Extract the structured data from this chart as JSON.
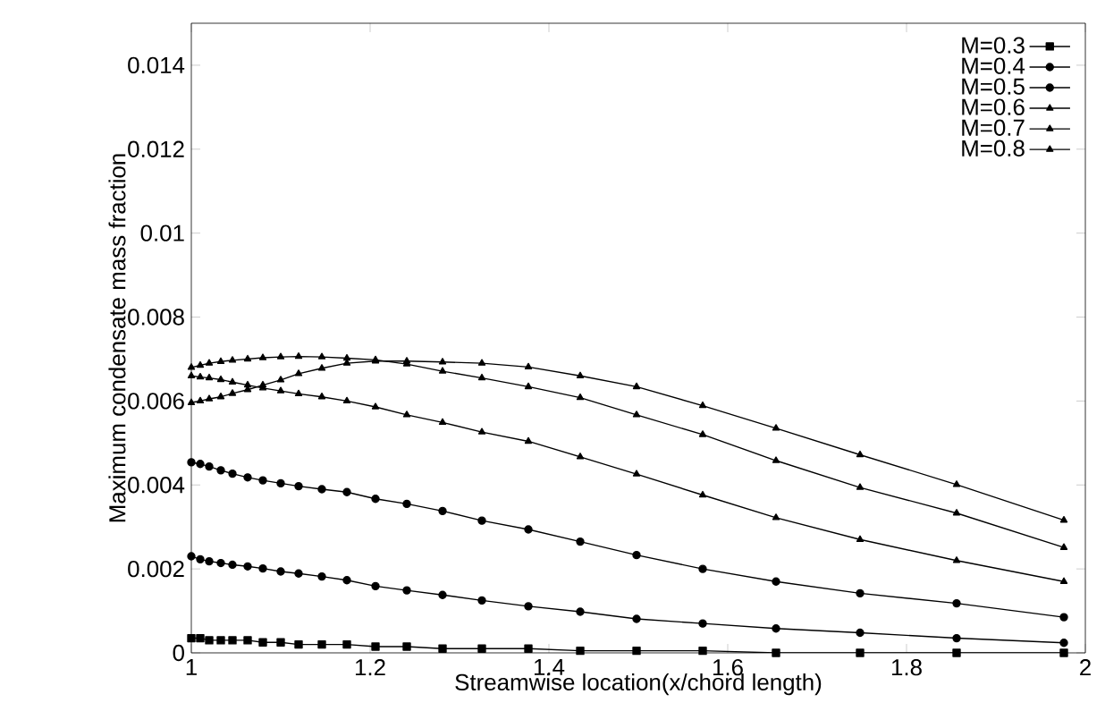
{
  "chart_data": {
    "type": "line",
    "xlabel": "Streamwise location(x/chord length)",
    "ylabel": "Maximum condensate mass fraction",
    "x": [
      1.0,
      1.01,
      1.02,
      1.033,
      1.046,
      1.063,
      1.08,
      1.1,
      1.12,
      1.146,
      1.174,
      1.206,
      1.241,
      1.281,
      1.325,
      1.377,
      1.435,
      1.498,
      1.572,
      1.654,
      1.748,
      1.856,
      1.976
    ],
    "series": [
      {
        "name": "M=0.3",
        "color": "#000000",
        "marker": "square",
        "values": [
          0.00035,
          0.00035,
          0.0003,
          0.0003,
          0.0003,
          0.0003,
          0.00025,
          0.00025,
          0.0002,
          0.0002,
          0.0002,
          0.00015,
          0.00015,
          0.0001,
          0.0001,
          0.0001,
          5e-05,
          5e-05,
          5e-05,
          0,
          0,
          0,
          0
        ]
      },
      {
        "name": "M=0.4",
        "color": "#000000",
        "marker": "circle",
        "values": [
          0.0023,
          0.00223,
          0.00218,
          0.00214,
          0.0021,
          0.00206,
          0.00201,
          0.00194,
          0.00189,
          0.00182,
          0.00173,
          0.00159,
          0.00149,
          0.00138,
          0.00125,
          0.00111,
          0.00098,
          0.00081,
          0.0007,
          0.00058,
          0.00048,
          0.00035,
          0.00024
        ]
      },
      {
        "name": "M=0.5",
        "color": "#000000",
        "marker": "circle",
        "values": [
          0.00454,
          0.0045,
          0.00444,
          0.00435,
          0.00427,
          0.00418,
          0.00411,
          0.00404,
          0.00397,
          0.0039,
          0.00383,
          0.00367,
          0.00355,
          0.00338,
          0.00315,
          0.00294,
          0.00265,
          0.00233,
          0.002,
          0.0017,
          0.00142,
          0.00118,
          0.00085
        ]
      },
      {
        "name": "M=0.6",
        "color": "#000000",
        "marker": "triangle",
        "values": [
          0.0066,
          0.00657,
          0.00655,
          0.00651,
          0.00645,
          0.00638,
          0.00631,
          0.00624,
          0.00617,
          0.0061,
          0.006,
          0.00586,
          0.00567,
          0.00549,
          0.00526,
          0.00504,
          0.00467,
          0.00426,
          0.00376,
          0.00322,
          0.0027,
          0.0022,
          0.0017
        ]
      },
      {
        "name": "M=0.7",
        "color": "#000000",
        "marker": "triangle",
        "values": [
          0.0068,
          0.00685,
          0.0069,
          0.00694,
          0.00697,
          0.007,
          0.00703,
          0.00705,
          0.00706,
          0.00705,
          0.00702,
          0.00698,
          0.00688,
          0.00671,
          0.00655,
          0.00634,
          0.00608,
          0.00567,
          0.0052,
          0.00458,
          0.00394,
          0.00333,
          0.00251
        ]
      },
      {
        "name": "M=0.8",
        "color": "#000000",
        "marker": "triangle",
        "values": [
          0.00596,
          0.006,
          0.00605,
          0.0061,
          0.00618,
          0.00627,
          0.00638,
          0.0065,
          0.00665,
          0.00678,
          0.0069,
          0.00695,
          0.00695,
          0.00693,
          0.0069,
          0.00681,
          0.0066,
          0.00634,
          0.00589,
          0.00535,
          0.00472,
          0.00401,
          0.00316
        ]
      }
    ],
    "xlim": [
      1,
      2
    ],
    "xticks": [
      1,
      1.2,
      1.4,
      1.6,
      1.8,
      2
    ],
    "ylim": [
      0,
      0.015
    ],
    "yticks": [
      0,
      0.002,
      0.004,
      0.006,
      0.008,
      0.01,
      0.012,
      0.014
    ],
    "grid": false,
    "legend": "top right",
    "line_style": "solid"
  }
}
